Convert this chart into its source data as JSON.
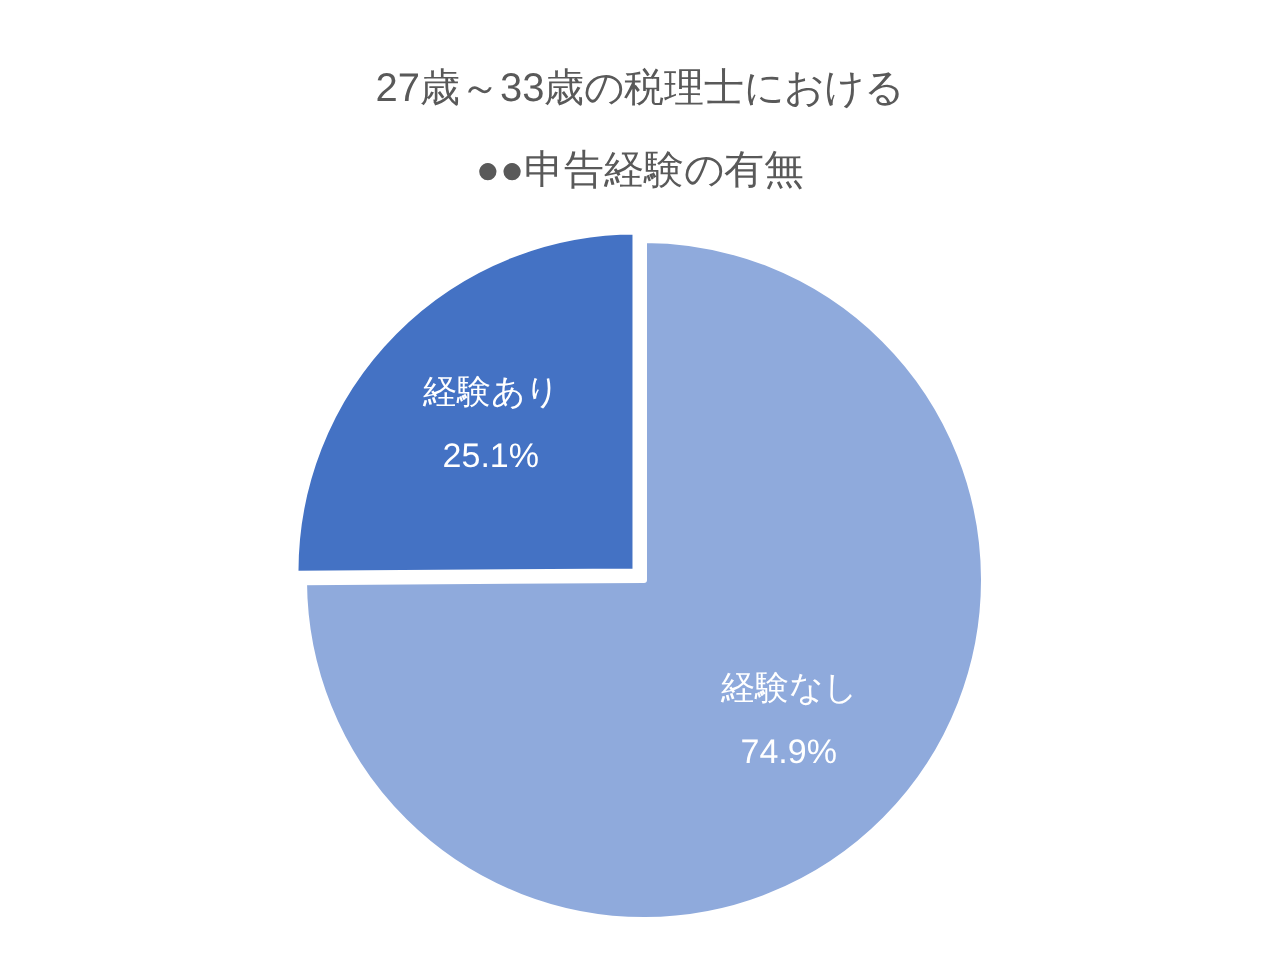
{
  "chart_data": {
    "type": "pie",
    "title": "27歳～33歳の税理士における",
    "subtitle": "●●申告経験の有無",
    "categories": [
      "経験なし",
      "経験あり"
    ],
    "values": [
      74.9,
      25.1
    ],
    "colors": [
      "#8faadc",
      "#4472c4"
    ],
    "value_labels": [
      "74.9%",
      "25.1%"
    ],
    "legend": false
  }
}
